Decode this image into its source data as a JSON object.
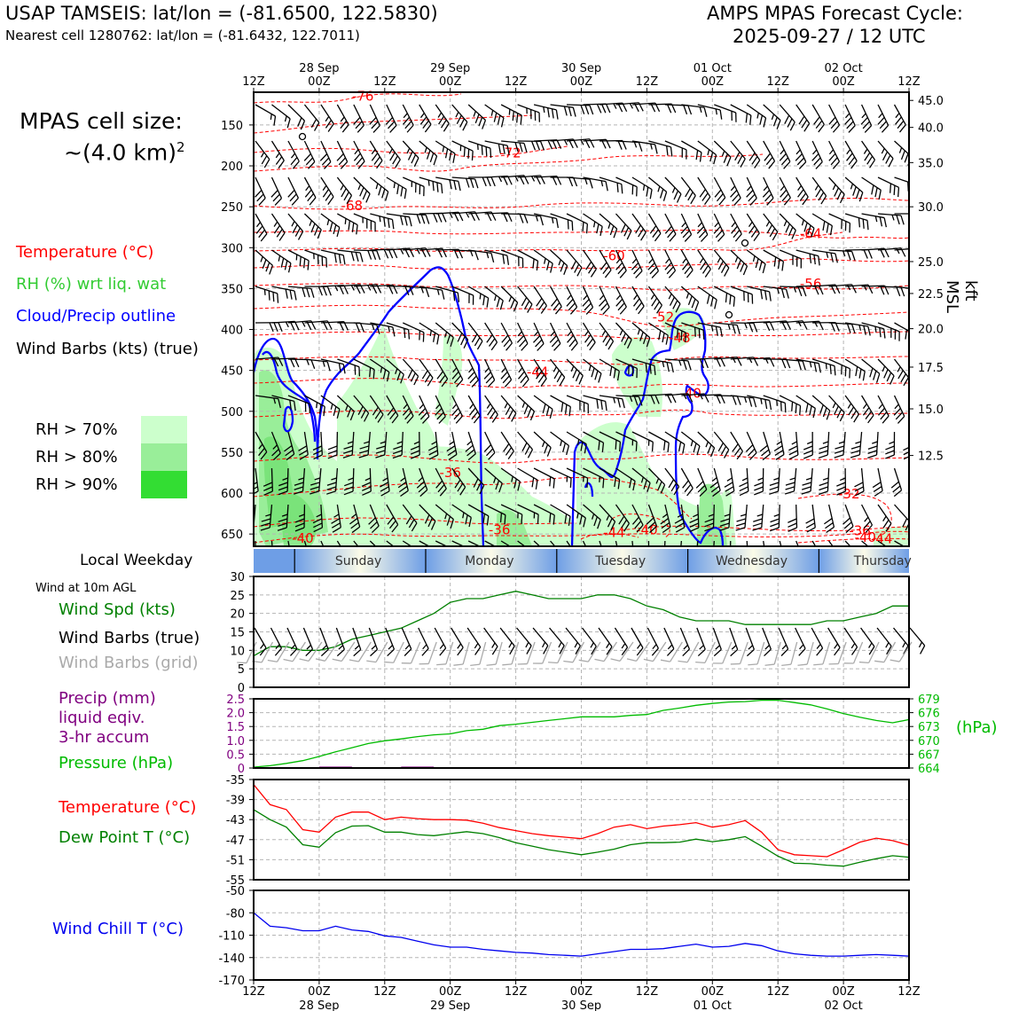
{
  "header": {
    "title_left": "USAP TAMSEIS: lat/lon = (-81.6500, 122.5830)",
    "subtitle_left": "Nearest cell 1280762: lat/lon = (-81.6432, 122.7011)",
    "title_right_1": "AMPS MPAS Forecast Cycle:",
    "title_right_2": "2025-09-27 / 12 UTC"
  },
  "side": {
    "cell_size_1": "MPAS cell size:",
    "cell_size_2": "~(4.0 km)",
    "cell_size_sup": "2",
    "legend_temp": "Temperature (°C)",
    "legend_rh": "RH (%) wrt liq. wat",
    "legend_cloud": "Cloud/Precip outline",
    "legend_wind": "Wind Barbs (kts) (true)",
    "rh70": "RH > 70%",
    "rh80": "RH > 80%",
    "rh90": "RH > 90%",
    "local_weekday": "Local Weekday",
    "wind10m": "Wind at 10m AGL",
    "wind_spd": "Wind Spd (kts)",
    "wind_barbs_true": "Wind Barbs (true)",
    "wind_barbs_grid": "Wind Barbs (grid)",
    "precip_1": "Precip (mm)",
    "precip_2": "liquid eqiv.",
    "precip_3": "3-hr accum",
    "pressure": "Pressure (hPa)",
    "temp": "Temperature (°C)",
    "dewpoint": "Dew Point T (°C)",
    "windchill": "Wind Chill T (°C)",
    "kft_label": "kft MSL",
    "hpa_label": "(hPa)"
  },
  "colors": {
    "temperature": "#ff0000",
    "rh_text": "#33cc33",
    "cloud": "#0000ff",
    "wind": "#000000",
    "rh70": "#ccffcc",
    "rh80": "#99ee99",
    "rh90": "#33dd33",
    "wind_spd": "#008000",
    "grid_barbs": "#aaaaaa",
    "precip": "#800080",
    "pressure": "#00bb00",
    "dewpoint": "#008000",
    "windchill": "#0000ee"
  },
  "time_axis": {
    "top_dates": [
      "28 Sep",
      "29 Sep",
      "30 Sep",
      "01 Oct",
      "02 Oct"
    ],
    "ticks": [
      "12Z",
      "00Z",
      "12Z",
      "00Z",
      "12Z",
      "00Z",
      "12Z",
      "00Z",
      "12Z",
      "00Z",
      "12Z"
    ],
    "bottom_dates": [
      "28 Sep",
      "29 Sep",
      "30 Sep",
      "01 Oct",
      "02 Oct"
    ]
  },
  "weekdays": [
    "Sunday",
    "Monday",
    "Tuesday",
    "Wednesday",
    "Thursday"
  ],
  "chart_data": [
    {
      "type": "heatmap",
      "name": "cross-section",
      "y_pressure_ticks": [
        "150",
        "200",
        "250",
        "300",
        "350",
        "400",
        "450",
        "500",
        "550",
        "600",
        "650"
      ],
      "y_pressure_values": [
        150,
        200,
        250,
        300,
        350,
        400,
        450,
        500,
        550,
        600,
        650
      ],
      "y_kft_ticks": [
        "45.0",
        "40.0",
        "35.0",
        "30.0",
        "25.0",
        "22.5",
        "20.0",
        "17.5",
        "15.0",
        "12.5"
      ],
      "y_kft_pressure": [
        120,
        153,
        196,
        250,
        317,
        356,
        399,
        446,
        497,
        554
      ],
      "ylim_pressure": [
        110,
        665
      ],
      "x_hours": [
        0,
        120
      ],
      "temperature_labels": [
        {
          "text": "-76",
          "hour": 20,
          "p": 115
        },
        {
          "text": "-72",
          "hour": 47,
          "p": 184
        },
        {
          "text": "-68",
          "hour": 18,
          "p": 249
        },
        {
          "text": "-64",
          "hour": 102,
          "p": 283
        },
        {
          "text": "-60",
          "hour": 66,
          "p": 310
        },
        {
          "text": "-56",
          "hour": 102,
          "p": 344
        },
        {
          "text": "-52",
          "hour": 75,
          "p": 385
        },
        {
          "text": "-48",
          "hour": 78,
          "p": 410
        },
        {
          "text": "-44",
          "hour": 52,
          "p": 452
        },
        {
          "text": "-40",
          "hour": 80,
          "p": 478
        },
        {
          "text": "-36",
          "hour": 36,
          "p": 575
        },
        {
          "text": "-32",
          "hour": 109,
          "p": 601
        },
        {
          "text": "-36",
          "hour": 45,
          "p": 645
        },
        {
          "text": "-44",
          "hour": 66,
          "p": 648
        },
        {
          "text": "-40",
          "hour": 72,
          "p": 645
        },
        {
          "text": "-40",
          "hour": 9,
          "p": 655
        },
        {
          "text": "-36",
          "hour": 111,
          "p": 646
        },
        {
          "text": "-40",
          "hour": 112,
          "p": 654
        },
        {
          "text": "-44",
          "hour": 115,
          "p": 656
        }
      ]
    },
    {
      "type": "line",
      "name": "wind10m",
      "ylim": [
        0,
        30
      ],
      "yticks": [
        0,
        5,
        10,
        15,
        20,
        25,
        30
      ],
      "x_hours": [
        0,
        3,
        6,
        9,
        12,
        15,
        18,
        21,
        24,
        27,
        30,
        33,
        36,
        39,
        42,
        45,
        48,
        51,
        54,
        57,
        60,
        63,
        66,
        69,
        72,
        75,
        78,
        81,
        84,
        87,
        90,
        93,
        96,
        99,
        102,
        105,
        108,
        111,
        114,
        117,
        120
      ],
      "wind_speed": [
        8.5,
        11,
        11,
        10,
        10,
        11,
        13,
        14,
        15,
        16,
        18,
        20,
        23,
        24,
        24,
        25,
        26,
        25,
        24,
        24,
        24,
        25,
        25,
        24,
        22,
        21,
        19,
        18,
        18,
        18,
        17,
        17,
        17,
        17,
        17,
        18,
        18,
        19,
        20,
        22,
        22
      ]
    },
    {
      "type": "line",
      "name": "precip-pressure",
      "precip_ylim": [
        0,
        2.5
      ],
      "precip_yticks": [
        "0",
        "0.5",
        "1.0",
        "1.5",
        "2.0",
        "2.5"
      ],
      "precip_bars": [
        {
          "hour_start": 12,
          "hour_end": 18,
          "value": 0.05
        },
        {
          "hour_start": 27,
          "hour_end": 33,
          "value": 0.05
        }
      ],
      "pressure_ylim": [
        664,
        679
      ],
      "pressure_yticks": [
        "664",
        "667",
        "670",
        "673",
        "676",
        "679"
      ],
      "pressure_tick_values": [
        664,
        667,
        670,
        673,
        676,
        679
      ],
      "x_hours": [
        0,
        3,
        6,
        9,
        12,
        15,
        18,
        21,
        24,
        27,
        30,
        33,
        36,
        39,
        42,
        45,
        48,
        51,
        54,
        57,
        60,
        63,
        66,
        69,
        72,
        75,
        78,
        81,
        84,
        87,
        90,
        93,
        96,
        99,
        102,
        105,
        108,
        111,
        114,
        117,
        120
      ],
      "pressure": [
        664.2,
        664.5,
        665,
        665.6,
        666.5,
        667.5,
        668.4,
        669.3,
        669.9,
        670.3,
        670.8,
        671.2,
        671.4,
        672.1,
        672.4,
        673.2,
        673.5,
        673.9,
        674.3,
        674.7,
        675.1,
        675.1,
        675.1,
        675.4,
        675.6,
        676.5,
        677.0,
        677.6,
        678.0,
        678.3,
        678.4,
        678.7,
        678.7,
        678.2,
        677.7,
        676.8,
        675.8,
        675.0,
        674.3,
        673.8,
        674.5
      ]
    },
    {
      "type": "line",
      "name": "temp-dewpoint",
      "ylim": [
        -55,
        -35
      ],
      "yticks": [
        "-35",
        "-39",
        "-43",
        "-47",
        "-51",
        "-55"
      ],
      "ytick_values": [
        -35,
        -39,
        -43,
        -47,
        -51,
        -55
      ],
      "x_hours": [
        0,
        3,
        6,
        9,
        12,
        15,
        18,
        21,
        24,
        27,
        30,
        33,
        36,
        39,
        42,
        45,
        48,
        51,
        54,
        57,
        60,
        63,
        66,
        69,
        72,
        75,
        78,
        81,
        84,
        87,
        90,
        93,
        96,
        99,
        102,
        105,
        108,
        111,
        114,
        117,
        120
      ],
      "temperature": [
        -36,
        -40,
        -41,
        -45,
        -45.5,
        -42.5,
        -41.5,
        -41.5,
        -43,
        -42.5,
        -42.8,
        -43,
        -43,
        -43.1,
        -43.7,
        -44.6,
        -45.2,
        -45.8,
        -46.2,
        -46.5,
        -46.8,
        -45.8,
        -44.5,
        -44,
        -44.8,
        -44.3,
        -44,
        -43.6,
        -44.5,
        -44,
        -43.2,
        -45.5,
        -49,
        -50,
        -50.2,
        -50.4,
        -49,
        -47.5,
        -46.7,
        -47.2,
        -48.1
      ],
      "dewpoint": [
        -41,
        -43,
        -44.5,
        -48,
        -48.5,
        -45.6,
        -44.3,
        -44.2,
        -45.5,
        -45.5,
        -46,
        -46.2,
        -45.8,
        -45.4,
        -45.8,
        -46.6,
        -47.6,
        -48.3,
        -49,
        -49.5,
        -50,
        -49.5,
        -48.9,
        -48,
        -47.6,
        -47.6,
        -47.5,
        -46.9,
        -47.4,
        -47,
        -46.4,
        -48.3,
        -50.3,
        -51.7,
        -51.8,
        -52.1,
        -52.3,
        -51.5,
        -50.8,
        -50.2,
        -50.5
      ]
    },
    {
      "type": "line",
      "name": "windchill",
      "ylim": [
        -170,
        -50
      ],
      "yticks": [
        "-50",
        "-80",
        "-110",
        "-140",
        "-170"
      ],
      "ytick_values": [
        -50,
        -80,
        -110,
        -140,
        -170
      ],
      "x_hours": [
        0,
        3,
        6,
        9,
        12,
        15,
        18,
        21,
        24,
        27,
        30,
        33,
        36,
        39,
        42,
        45,
        48,
        51,
        54,
        57,
        60,
        63,
        66,
        69,
        72,
        75,
        78,
        81,
        84,
        87,
        90,
        93,
        96,
        99,
        102,
        105,
        108,
        111,
        114,
        117,
        120
      ],
      "windchill": [
        -80,
        -98,
        -100,
        -104,
        -104,
        -98,
        -103,
        -105,
        -111,
        -113,
        -118,
        -123,
        -126,
        -126,
        -129,
        -131,
        -133,
        -134,
        -136,
        -137,
        -138,
        -135,
        -132,
        -129,
        -129,
        -128,
        -125,
        -122,
        -126,
        -125,
        -121,
        -124,
        -131,
        -135,
        -137,
        -138,
        -138,
        -137,
        -136,
        -137,
        -138
      ]
    }
  ]
}
